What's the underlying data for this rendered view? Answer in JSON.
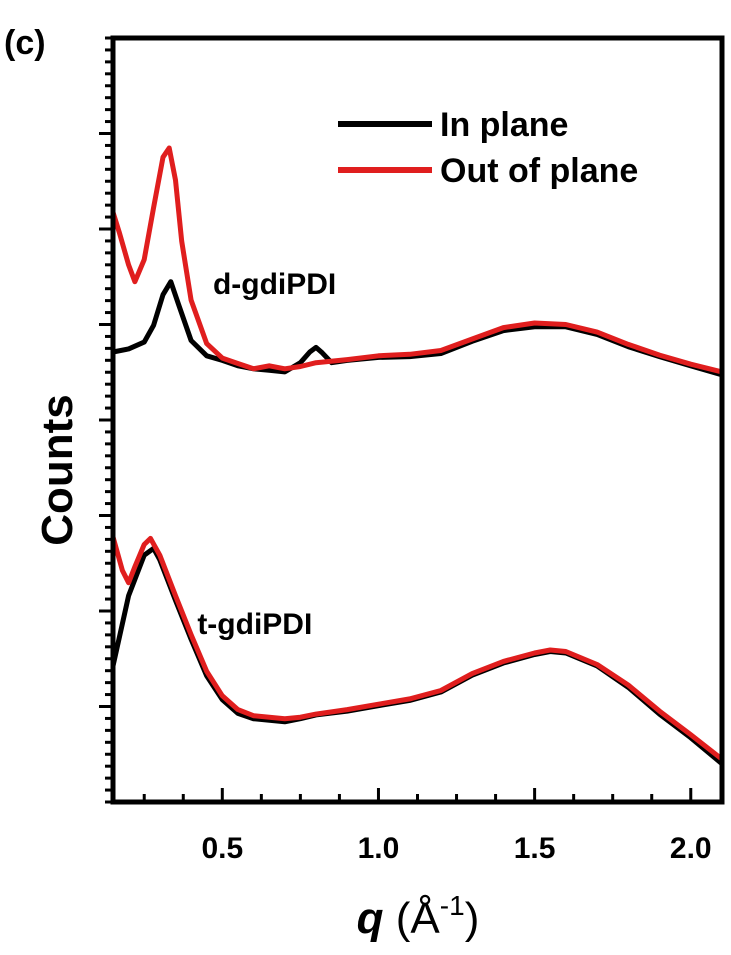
{
  "panel_label": "(c)",
  "chart_data": {
    "type": "line",
    "xlabel_symbol": "q",
    "xlabel_unit_open": " (Å",
    "xlabel_unit_exp": "-1",
    "xlabel_unit_close": ")",
    "ylabel": "Counts",
    "xlim": [
      0.15,
      2.1
    ],
    "ylim": [
      0,
      1
    ],
    "xticks": [
      0.5,
      1.0,
      1.5,
      2.0
    ],
    "xtick_labels": [
      "0.5",
      "1.0",
      "1.5",
      "2.0"
    ],
    "yaxis_tick_labels": false,
    "legend_position": "top-right",
    "colors": {
      "in_plane": "#000000",
      "out_of_plane": "#e01e1e"
    },
    "series": [
      {
        "name": "In plane",
        "group": "d-gdiPDI",
        "color": "#000000",
        "points": [
          [
            0.15,
            0.589
          ],
          [
            0.2,
            0.593
          ],
          [
            0.25,
            0.602
          ],
          [
            0.28,
            0.624
          ],
          [
            0.31,
            0.664
          ],
          [
            0.335,
            0.681
          ],
          [
            0.36,
            0.651
          ],
          [
            0.4,
            0.604
          ],
          [
            0.45,
            0.584
          ],
          [
            0.5,
            0.578
          ],
          [
            0.55,
            0.571
          ],
          [
            0.6,
            0.567
          ],
          [
            0.65,
            0.565
          ],
          [
            0.7,
            0.563
          ],
          [
            0.75,
            0.575
          ],
          [
            0.78,
            0.589
          ],
          [
            0.8,
            0.595
          ],
          [
            0.82,
            0.588
          ],
          [
            0.85,
            0.575
          ],
          [
            0.9,
            0.578
          ],
          [
            1.0,
            0.582
          ],
          [
            1.1,
            0.583
          ],
          [
            1.2,
            0.587
          ],
          [
            1.3,
            0.603
          ],
          [
            1.4,
            0.617
          ],
          [
            1.5,
            0.622
          ],
          [
            1.6,
            0.622
          ],
          [
            1.7,
            0.612
          ],
          [
            1.8,
            0.596
          ],
          [
            1.9,
            0.583
          ],
          [
            2.0,
            0.571
          ],
          [
            2.1,
            0.559
          ]
        ]
      },
      {
        "name": "Out of plane",
        "group": "d-gdiPDI",
        "color": "#e01e1e",
        "points": [
          [
            0.15,
            0.772
          ],
          [
            0.17,
            0.746
          ],
          [
            0.2,
            0.703
          ],
          [
            0.22,
            0.681
          ],
          [
            0.25,
            0.71
          ],
          [
            0.28,
            0.778
          ],
          [
            0.31,
            0.844
          ],
          [
            0.33,
            0.856
          ],
          [
            0.35,
            0.814
          ],
          [
            0.37,
            0.734
          ],
          [
            0.4,
            0.657
          ],
          [
            0.45,
            0.6
          ],
          [
            0.5,
            0.581
          ],
          [
            0.55,
            0.574
          ],
          [
            0.6,
            0.567
          ],
          [
            0.65,
            0.571
          ],
          [
            0.7,
            0.567
          ],
          [
            0.75,
            0.57
          ],
          [
            0.8,
            0.575
          ],
          [
            0.9,
            0.579
          ],
          [
            1.0,
            0.584
          ],
          [
            1.1,
            0.586
          ],
          [
            1.2,
            0.591
          ],
          [
            1.3,
            0.606
          ],
          [
            1.4,
            0.621
          ],
          [
            1.5,
            0.627
          ],
          [
            1.6,
            0.625
          ],
          [
            1.7,
            0.615
          ],
          [
            1.8,
            0.599
          ],
          [
            1.9,
            0.585
          ],
          [
            2.0,
            0.573
          ],
          [
            2.1,
            0.563
          ]
        ]
      },
      {
        "name": "In plane",
        "group": "t-gdiPDI",
        "color": "#000000",
        "points": [
          [
            0.15,
            0.178
          ],
          [
            0.2,
            0.27
          ],
          [
            0.25,
            0.323
          ],
          [
            0.28,
            0.332
          ],
          [
            0.3,
            0.317
          ],
          [
            0.35,
            0.264
          ],
          [
            0.4,
            0.213
          ],
          [
            0.45,
            0.165
          ],
          [
            0.5,
            0.134
          ],
          [
            0.55,
            0.116
          ],
          [
            0.6,
            0.109
          ],
          [
            0.7,
            0.105
          ],
          [
            0.75,
            0.109
          ],
          [
            0.8,
            0.114
          ],
          [
            0.9,
            0.119
          ],
          [
            1.0,
            0.126
          ],
          [
            1.1,
            0.133
          ],
          [
            1.2,
            0.144
          ],
          [
            1.3,
            0.166
          ],
          [
            1.4,
            0.182
          ],
          [
            1.5,
            0.193
          ],
          [
            1.55,
            0.197
          ],
          [
            1.6,
            0.195
          ],
          [
            1.7,
            0.178
          ],
          [
            1.8,
            0.15
          ],
          [
            1.9,
            0.115
          ],
          [
            2.0,
            0.084
          ],
          [
            2.1,
            0.05
          ]
        ]
      },
      {
        "name": "Out of plane",
        "group": "t-gdiPDI",
        "color": "#e01e1e",
        "points": [
          [
            0.15,
            0.347
          ],
          [
            0.18,
            0.303
          ],
          [
            0.2,
            0.287
          ],
          [
            0.22,
            0.308
          ],
          [
            0.25,
            0.337
          ],
          [
            0.27,
            0.345
          ],
          [
            0.3,
            0.323
          ],
          [
            0.35,
            0.27
          ],
          [
            0.4,
            0.219
          ],
          [
            0.45,
            0.171
          ],
          [
            0.5,
            0.139
          ],
          [
            0.55,
            0.121
          ],
          [
            0.6,
            0.113
          ],
          [
            0.7,
            0.109
          ],
          [
            0.75,
            0.111
          ],
          [
            0.8,
            0.115
          ],
          [
            0.9,
            0.121
          ],
          [
            1.0,
            0.128
          ],
          [
            1.1,
            0.135
          ],
          [
            1.2,
            0.146
          ],
          [
            1.3,
            0.168
          ],
          [
            1.4,
            0.184
          ],
          [
            1.5,
            0.195
          ],
          [
            1.55,
            0.199
          ],
          [
            1.6,
            0.197
          ],
          [
            1.7,
            0.18
          ],
          [
            1.8,
            0.153
          ],
          [
            1.9,
            0.119
          ],
          [
            2.0,
            0.088
          ],
          [
            2.1,
            0.056
          ]
        ]
      }
    ],
    "annotations": [
      {
        "text": "d-gdiPDI",
        "x": 0.47,
        "y": 0.665
      },
      {
        "text": "t-gdiPDI",
        "x": 0.42,
        "y": 0.22
      }
    ]
  }
}
